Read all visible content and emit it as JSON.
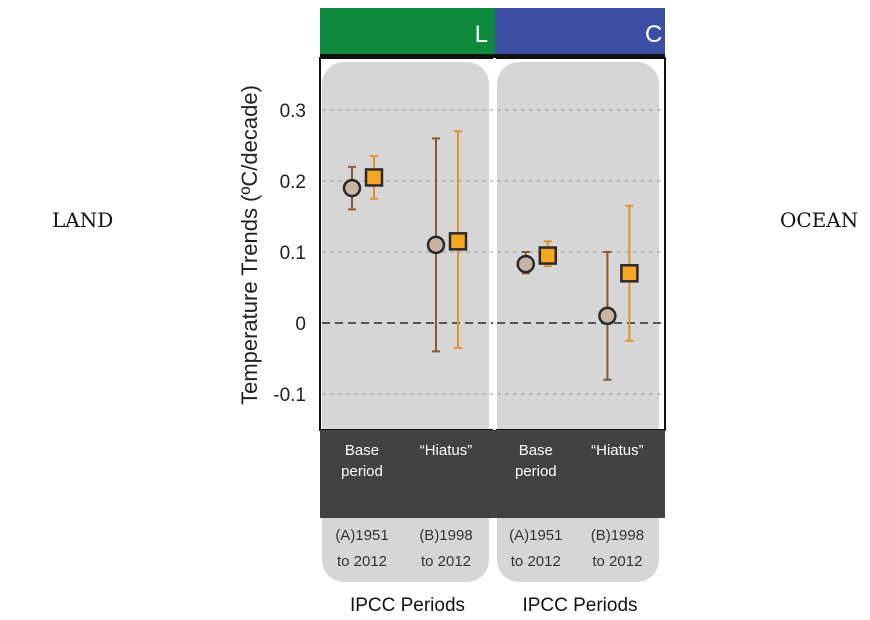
{
  "side_labels": {
    "left": "LAND",
    "right": "OCEAN"
  },
  "chart_data": {
    "type": "scatter",
    "ylabel": "Temperature Trends (ºC/decade)",
    "yticks": [
      "0.3",
      "0.2",
      "0.1",
      "0",
      "-0.1"
    ],
    "ylim": [
      -0.15,
      0.37
    ],
    "grid": true,
    "colors": {
      "land_header": "#0e8a3c",
      "ocean_header": "#3d4fa3",
      "panel_bg": "#d6d6d6",
      "category_band": "#424242",
      "marker_circle": "#c9b4a4",
      "marker_square": "#f5a623",
      "errorbar_circle": "#8a5a2b",
      "errorbar_square": "#e0922a"
    },
    "panels": [
      {
        "header": "L",
        "categories": [
          {
            "line1": "Base",
            "line2": "period",
            "period1": "(A)1951",
            "period2": "to 2012"
          },
          {
            "line1": "“Hiatus”",
            "line2": "",
            "period1": "(B)1998",
            "period2": "to 2012"
          }
        ],
        "series": [
          {
            "marker": "circle",
            "values": [
              0.19,
              0.11
            ],
            "err_low": [
              0.16,
              -0.04
            ],
            "err_high": [
              0.22,
              0.26
            ]
          },
          {
            "marker": "square",
            "values": [
              0.205,
              0.115
            ],
            "err_low": [
              0.175,
              -0.035
            ],
            "err_high": [
              0.235,
              0.27
            ]
          }
        ],
        "footer": "IPCC Periods"
      },
      {
        "header": "C",
        "categories": [
          {
            "line1": "Base",
            "line2": "period",
            "period1": "(A)1951",
            "period2": "to 2012"
          },
          {
            "line1": "“Hiatus”",
            "line2": "",
            "period1": "(B)1998",
            "period2": "to 2012"
          }
        ],
        "series": [
          {
            "marker": "circle",
            "values": [
              0.083,
              0.01
            ],
            "err_low": [
              0.07,
              -0.08
            ],
            "err_high": [
              0.1,
              0.1
            ]
          },
          {
            "marker": "square",
            "values": [
              0.095,
              0.07
            ],
            "err_low": [
              0.08,
              -0.025
            ],
            "err_high": [
              0.115,
              0.165
            ]
          }
        ],
        "footer": "IPCC Periods"
      }
    ]
  }
}
